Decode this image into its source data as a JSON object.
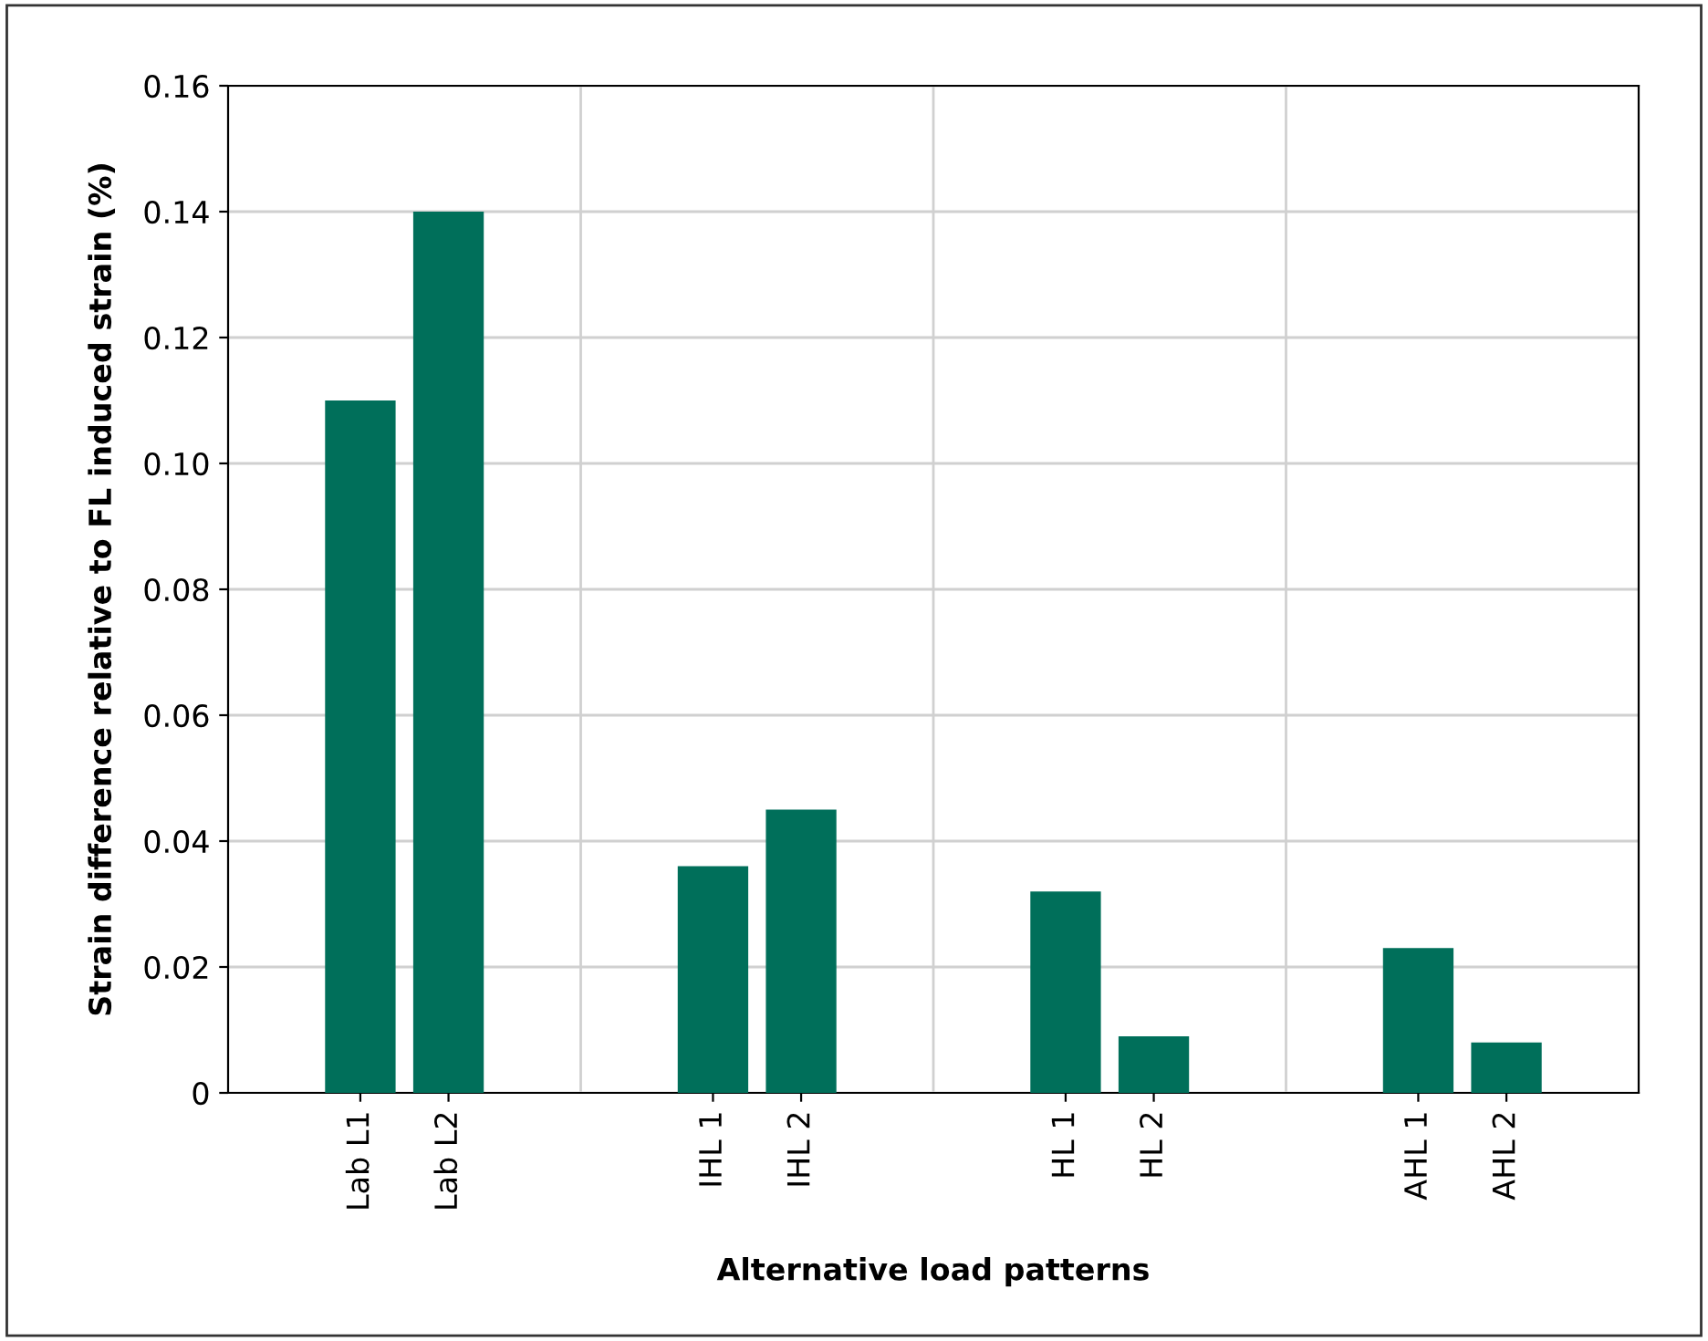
{
  "chart_data": {
    "type": "bar",
    "xlabel": "Alternative load patterns",
    "ylabel": "Strain difference relative to FL induced strain (%)",
    "categories": [
      "Lab L1",
      "Lab L2",
      null,
      null,
      "IHL 1",
      "IHL 2",
      null,
      null,
      "HL 1",
      "HL 2",
      null,
      null,
      "AHL 1",
      "AHL 2"
    ],
    "values": [
      0.11,
      0.14,
      null,
      null,
      0.036,
      0.045,
      null,
      null,
      0.032,
      0.009,
      null,
      null,
      0.023,
      0.008
    ],
    "color": "#006f5a",
    "ylim": [
      0,
      0.16
    ],
    "yticks": [
      {
        "value": 0,
        "label": "0"
      },
      {
        "value": 0.02,
        "label": "0.02"
      },
      {
        "value": 0.04,
        "label": "0.04"
      },
      {
        "value": 0.06,
        "label": "0.06"
      },
      {
        "value": 0.08,
        "label": "0.08"
      },
      {
        "value": 0.1,
        "label": "0.10"
      },
      {
        "value": 0.12,
        "label": "0.12"
      },
      {
        "value": 0.14,
        "label": "0.14"
      },
      {
        "value": 0.16,
        "label": "0.16"
      }
    ],
    "grid": true
  }
}
